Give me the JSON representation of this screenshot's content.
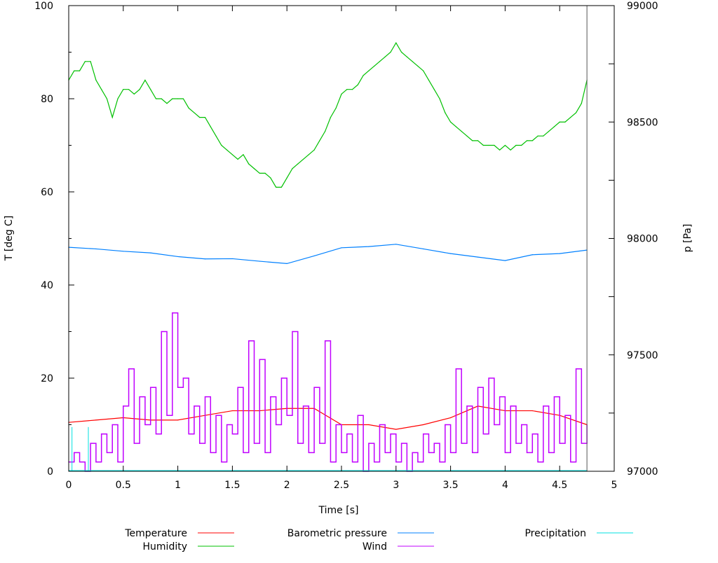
{
  "chart_data": {
    "type": "line",
    "xlabel": "Time [s]",
    "ylabel": "T [deg C]",
    "y2label": "p [Pa]",
    "xlim": [
      0,
      5
    ],
    "ylim": [
      0,
      100
    ],
    "y2lim": [
      97000,
      99000
    ],
    "xticks": [
      "0",
      "0.5",
      "1",
      "1.5",
      "2",
      "2.5",
      "3",
      "3.5",
      "4",
      "4.5",
      "5"
    ],
    "yticks": [
      "0",
      "20",
      "40",
      "60",
      "80",
      "100"
    ],
    "y2ticks": [
      "97000",
      "97500",
      "98000",
      "98500",
      "99000"
    ],
    "grid": false,
    "legend_position": "bottom",
    "series": [
      {
        "name": "Temperature",
        "color": "#ff0000",
        "axis": "y",
        "x_step": 0.25,
        "values": [
          10.5,
          11,
          11.5,
          11,
          11,
          12,
          13,
          13,
          13.5,
          13.5,
          10,
          10,
          9,
          10,
          11.5,
          14,
          13,
          13,
          12,
          10
        ]
      },
      {
        "name": "Humidity",
        "color": "#00c000",
        "axis": "y",
        "x_step": 0.05,
        "values": [
          84,
          86,
          86,
          88,
          88,
          84,
          82,
          80,
          76,
          80,
          82,
          82,
          81,
          82,
          84,
          82,
          80,
          80,
          79,
          80,
          80,
          80,
          78,
          77,
          76,
          76,
          74,
          72,
          70,
          69,
          68,
          67,
          68,
          66,
          65,
          64,
          64,
          63,
          61,
          61,
          63,
          65,
          66,
          67,
          68,
          69,
          71,
          73,
          76,
          78,
          81,
          82,
          82,
          83,
          85,
          86,
          87,
          88,
          89,
          90,
          92,
          90,
          89,
          88,
          87,
          86,
          84,
          82,
          80,
          77,
          75,
          74,
          73,
          72,
          71,
          71,
          70,
          70,
          70,
          69,
          70,
          69,
          70,
          70,
          71,
          71,
          72,
          72,
          73,
          74,
          75,
          75,
          76,
          77,
          79,
          84
        ]
      },
      {
        "name": "Barometric pressure",
        "color": "#0080ff",
        "axis": "y2",
        "x_step": 0.25,
        "values": [
          97962,
          97955,
          97945,
          97938,
          97922,
          97912,
          97913,
          97902,
          97892,
          97925,
          97960,
          97965,
          97975,
          97955,
          97935,
          97920,
          97905,
          97930,
          97935,
          97950
        ]
      },
      {
        "name": "Wind",
        "color": "#c000ff",
        "axis": "y",
        "x_step": 0.05,
        "values": [
          2,
          4,
          2,
          0,
          6,
          2,
          8,
          4,
          10,
          2,
          14,
          22,
          6,
          16,
          10,
          18,
          8,
          30,
          12,
          34,
          18,
          20,
          8,
          14,
          6,
          16,
          4,
          12,
          2,
          10,
          8,
          18,
          4,
          28,
          6,
          24,
          4,
          16,
          10,
          20,
          12,
          30,
          6,
          14,
          4,
          18,
          6,
          28,
          2,
          10,
          4,
          8,
          2,
          12,
          0,
          6,
          2,
          10,
          4,
          8,
          2,
          6,
          0,
          4,
          2,
          8,
          4,
          6,
          2,
          10,
          4,
          22,
          6,
          14,
          4,
          18,
          8,
          20,
          10,
          16,
          4,
          14,
          6,
          10,
          4,
          8,
          2,
          14,
          4,
          16,
          6,
          12,
          2,
          22,
          6,
          10
        ]
      },
      {
        "name": "Precipitation",
        "color": "#00e0e0",
        "axis": "y",
        "x_step": null,
        "spikes": [
          {
            "x": 0.03,
            "value": 9.5
          },
          {
            "x": 0.18,
            "value": 9.5
          }
        ]
      }
    ]
  }
}
